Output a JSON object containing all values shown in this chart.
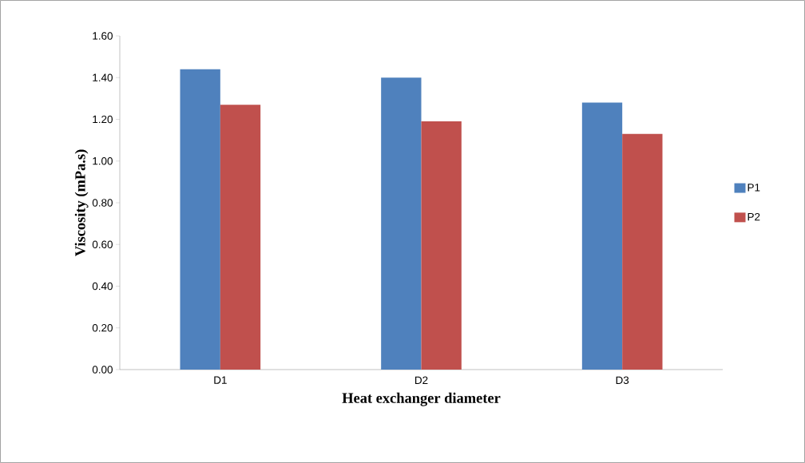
{
  "chart_data": {
    "type": "bar",
    "xlabel": "Heat exchanger diameter",
    "ylabel": "Viscosity (mPa.s)",
    "categories": [
      "D1",
      "D2",
      "D3"
    ],
    "series": [
      {
        "name": "P1",
        "color": "#4f81bd",
        "values": [
          1.44,
          1.4,
          1.28
        ]
      },
      {
        "name": "P2",
        "color": "#c0504d",
        "values": [
          1.27,
          1.19,
          1.13
        ]
      }
    ],
    "ylim": [
      0,
      1.6
    ],
    "yticks": [
      {
        "value": 0,
        "label": "0.00"
      },
      {
        "value": 0.2,
        "label": "0.20"
      },
      {
        "value": 0.4,
        "label": "0.40"
      },
      {
        "value": 0.6,
        "label": "0.60"
      },
      {
        "value": 0.8,
        "label": "0.80"
      },
      {
        "value": 1.0,
        "label": "1.00"
      },
      {
        "value": 1.2,
        "label": "1.20"
      },
      {
        "value": 1.4,
        "label": "1.40"
      },
      {
        "value": 1.6,
        "label": "1.60"
      }
    ],
    "grid": false,
    "legend": "right"
  }
}
